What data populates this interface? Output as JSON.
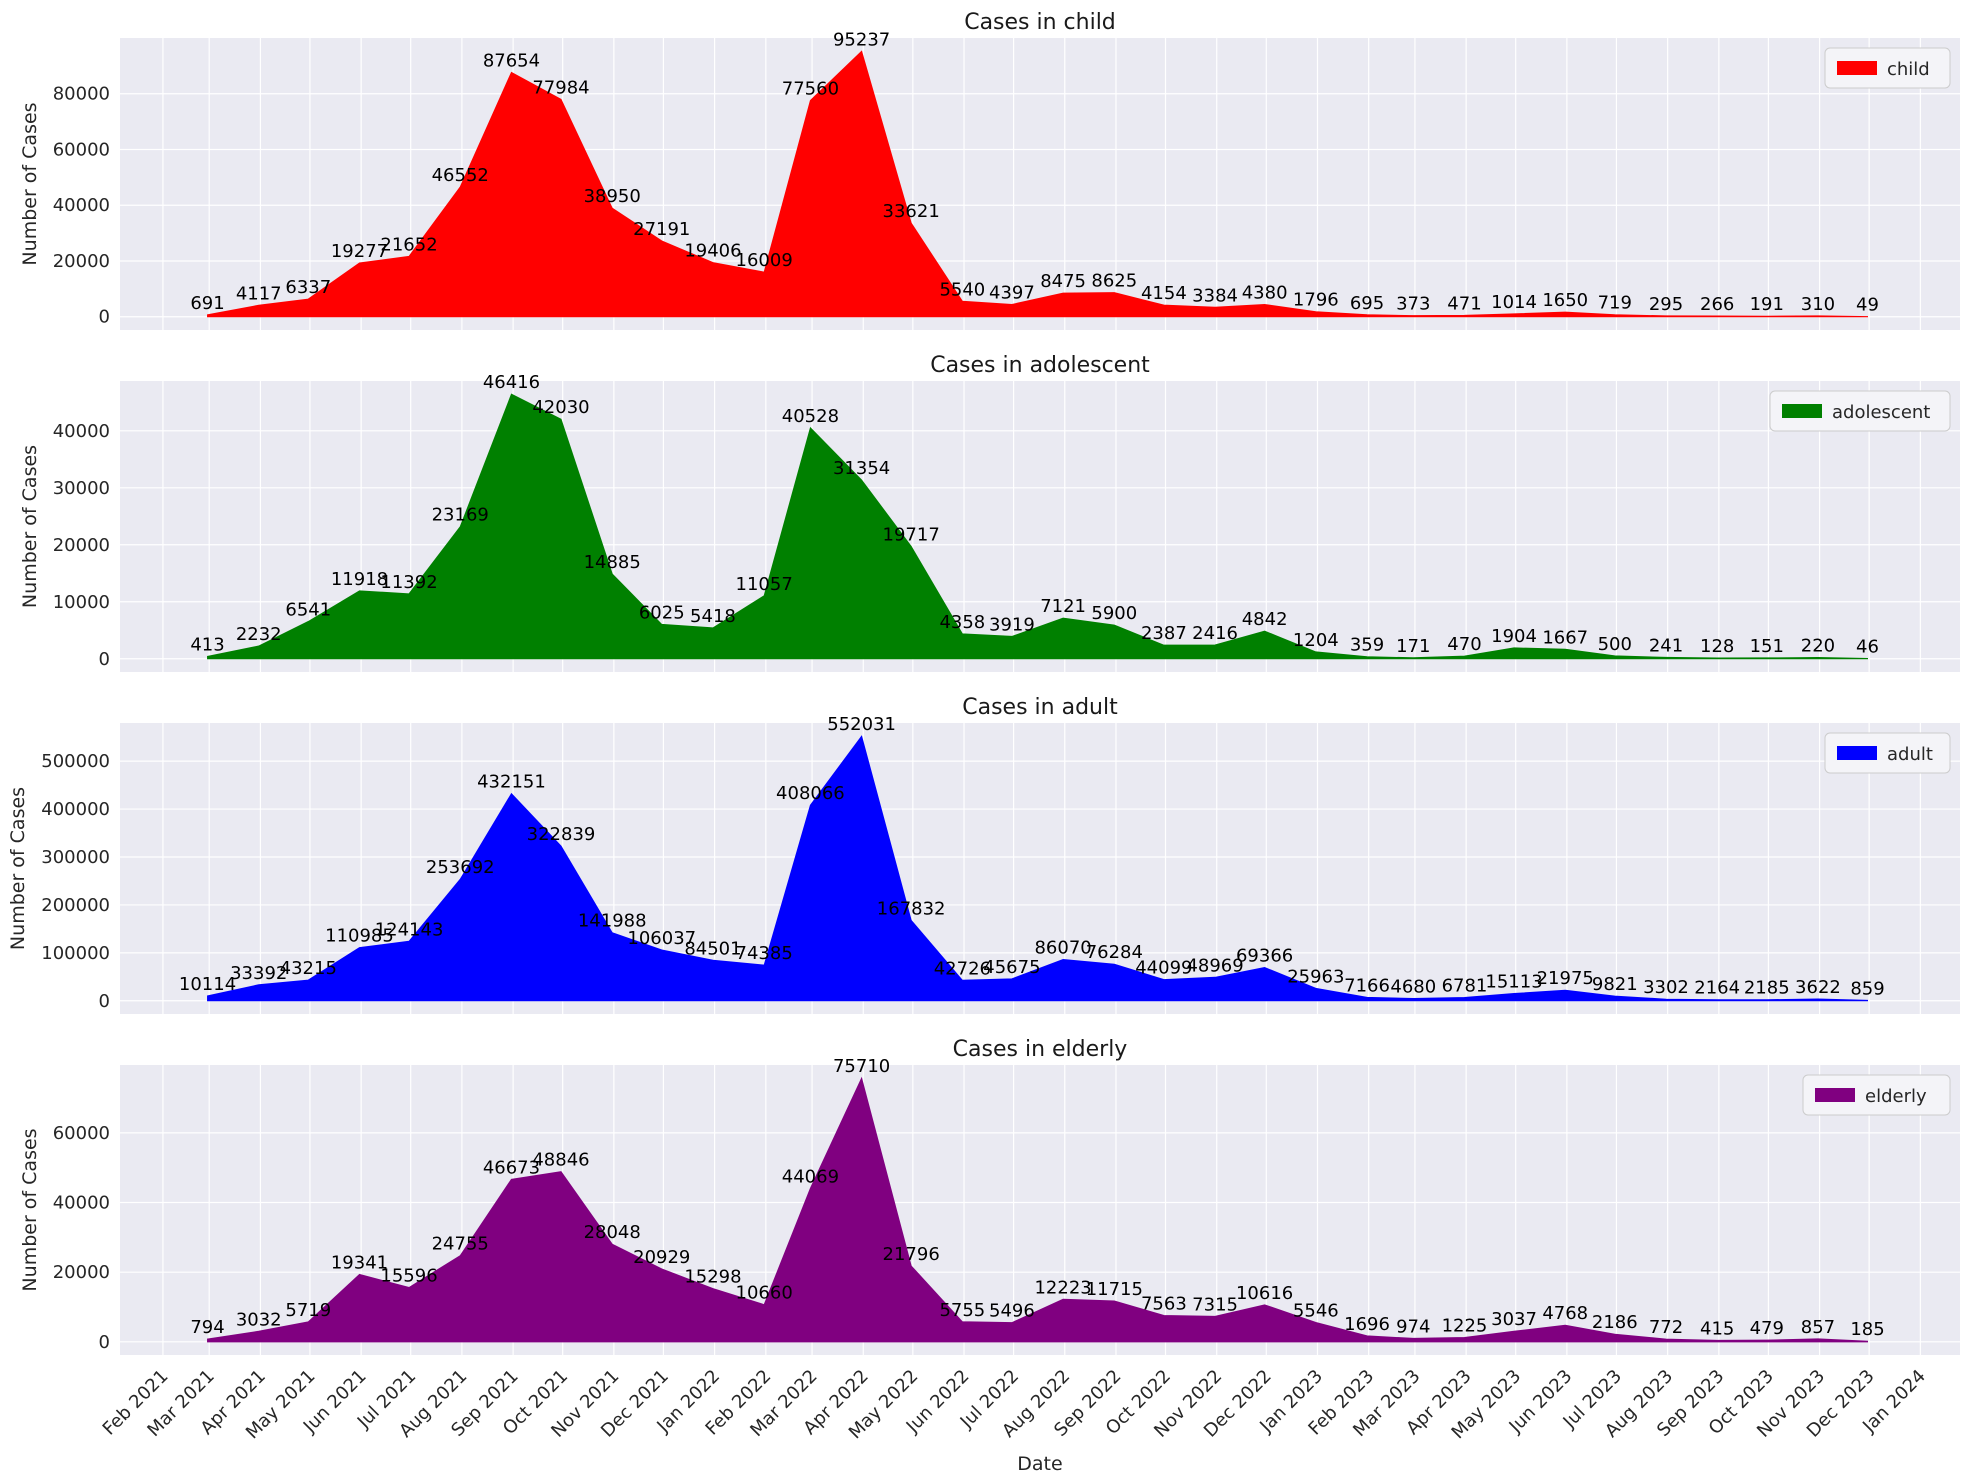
{
  "chart_data": [
    {
      "type": "area",
      "title": "Cases in child",
      "xlabel": "",
      "ylabel": "Number of Cases",
      "ylim": [
        -4762,
        100000
      ],
      "yticks": [
        0,
        20000,
        40000,
        60000,
        80000
      ],
      "grid": true,
      "legend_position": "top-right",
      "series": [
        {
          "name": "child",
          "color": "#ff0000",
          "values": [
            691,
            4117,
            6337,
            19277,
            21652,
            46552,
            87654,
            77984,
            38950,
            27191,
            19406,
            16009,
            77560,
            95237,
            33621,
            5540,
            4397,
            8475,
            8625,
            4154,
            3384,
            4380,
            1796,
            695,
            373,
            471,
            1014,
            1650,
            719,
            295,
            266,
            191,
            310,
            49
          ]
        }
      ]
    },
    {
      "type": "area",
      "title": "Cases in adolescent",
      "xlabel": "",
      "ylabel": "Number of Cases",
      "ylim": [
        -2321,
        48737
      ],
      "yticks": [
        0,
        10000,
        20000,
        30000,
        40000
      ],
      "grid": true,
      "legend_position": "top-right",
      "series": [
        {
          "name": "adolescent",
          "color": "#008000",
          "values": [
            413,
            2232,
            6541,
            11918,
            11392,
            23169,
            46416,
            42030,
            14885,
            6025,
            5418,
            11057,
            40528,
            31354,
            19717,
            4358,
            3919,
            7121,
            5900,
            2387,
            2416,
            4842,
            1204,
            359,
            171,
            470,
            1904,
            1667,
            500,
            241,
            128,
            151,
            220,
            46
          ]
        }
      ]
    },
    {
      "type": "area",
      "title": "Cases in adult",
      "xlabel": "",
      "ylabel": "Number of Cases",
      "ylim": [
        -27602,
        579633
      ],
      "yticks": [
        0,
        100000,
        200000,
        300000,
        400000,
        500000
      ],
      "grid": true,
      "legend_position": "top-right",
      "series": [
        {
          "name": "adult",
          "color": "#0000ff",
          "values": [
            10114,
            33392,
            43215,
            110985,
            124143,
            253692,
            432151,
            322839,
            141988,
            106037,
            84501,
            74385,
            408066,
            552031,
            167832,
            42726,
            45675,
            86070,
            76284,
            44099,
            48969,
            69366,
            25963,
            7166,
            4680,
            6781,
            15113,
            21975,
            9821,
            3302,
            2164,
            2185,
            3622,
            859
          ]
        }
      ]
    },
    {
      "type": "area",
      "title": "Cases in elderly",
      "xlabel": "Date",
      "ylabel": "Number of Cases",
      "ylim": [
        -3786,
        79496
      ],
      "yticks": [
        0,
        20000,
        40000,
        60000
      ],
      "grid": true,
      "legend_position": "top-right",
      "series": [
        {
          "name": "elderly",
          "color": "#800080",
          "values": [
            794,
            3032,
            5719,
            19341,
            15596,
            24755,
            46673,
            48846,
            28048,
            20929,
            15298,
            10660,
            44069,
            75710,
            21796,
            5755,
            5496,
            12223,
            11715,
            7563,
            7315,
            10616,
            5546,
            1696,
            974,
            1225,
            3037,
            4768,
            2186,
            772,
            415,
            479,
            857,
            185
          ]
        }
      ]
    }
  ],
  "x_dates": [
    "2021-02-28",
    "2021-03-31",
    "2021-04-30",
    "2021-05-31",
    "2021-06-30",
    "2021-07-31",
    "2021-08-31",
    "2021-09-30",
    "2021-10-31",
    "2021-11-30",
    "2021-12-31",
    "2022-01-31",
    "2022-02-28",
    "2022-03-31",
    "2022-04-30",
    "2022-05-31",
    "2022-06-30",
    "2022-07-31",
    "2022-08-31",
    "2022-09-30",
    "2022-10-31",
    "2022-11-30",
    "2022-12-31",
    "2023-01-31",
    "2023-02-28",
    "2023-03-31",
    "2023-04-30",
    "2023-05-31",
    "2023-06-30",
    "2023-07-31",
    "2023-08-31",
    "2023-09-30",
    "2023-10-31",
    "2023-11-30"
  ],
  "x_ticks": [
    {
      "date": "2021-02-01",
      "label": "Feb 2021"
    },
    {
      "date": "2021-03-01",
      "label": "Mar 2021"
    },
    {
      "date": "2021-04-01",
      "label": "Apr 2021"
    },
    {
      "date": "2021-05-01",
      "label": "May 2021"
    },
    {
      "date": "2021-06-01",
      "label": "Jun 2021"
    },
    {
      "date": "2021-07-01",
      "label": "Jul 2021"
    },
    {
      "date": "2021-08-01",
      "label": "Aug 2021"
    },
    {
      "date": "2021-09-01",
      "label": "Sep 2021"
    },
    {
      "date": "2021-10-01",
      "label": "Oct 2021"
    },
    {
      "date": "2021-11-01",
      "label": "Nov 2021"
    },
    {
      "date": "2021-12-01",
      "label": "Dec 2021"
    },
    {
      "date": "2022-01-01",
      "label": "Jan 2022"
    },
    {
      "date": "2022-02-01",
      "label": "Feb 2022"
    },
    {
      "date": "2022-03-01",
      "label": "Mar 2022"
    },
    {
      "date": "2022-04-01",
      "label": "Apr 2022"
    },
    {
      "date": "2022-05-01",
      "label": "May 2022"
    },
    {
      "date": "2022-06-01",
      "label": "Jun 2022"
    },
    {
      "date": "2022-07-01",
      "label": "Jul 2022"
    },
    {
      "date": "2022-08-01",
      "label": "Aug 2022"
    },
    {
      "date": "2022-09-01",
      "label": "Sep 2022"
    },
    {
      "date": "2022-10-01",
      "label": "Oct 2022"
    },
    {
      "date": "2022-11-01",
      "label": "Nov 2022"
    },
    {
      "date": "2022-12-01",
      "label": "Dec 2022"
    },
    {
      "date": "2023-01-01",
      "label": "Jan 2023"
    },
    {
      "date": "2023-02-01",
      "label": "Feb 2023"
    },
    {
      "date": "2023-03-01",
      "label": "Mar 2023"
    },
    {
      "date": "2023-04-01",
      "label": "Apr 2023"
    },
    {
      "date": "2023-05-01",
      "label": "May 2023"
    },
    {
      "date": "2023-06-01",
      "label": "Jun 2023"
    },
    {
      "date": "2023-07-01",
      "label": "Jul 2023"
    },
    {
      "date": "2023-08-01",
      "label": "Aug 2023"
    },
    {
      "date": "2023-09-01",
      "label": "Sep 2023"
    },
    {
      "date": "2023-10-01",
      "label": "Oct 2023"
    },
    {
      "date": "2023-11-01",
      "label": "Nov 2023"
    },
    {
      "date": "2023-12-01",
      "label": "Dec 2023"
    },
    {
      "date": "2024-01-01",
      "label": "Jan 2024"
    }
  ],
  "x_range": [
    "2021-01-06",
    "2024-01-25"
  ],
  "style": {
    "panel_bg": "#eaeaf2",
    "grid_color": "#ffffff"
  }
}
